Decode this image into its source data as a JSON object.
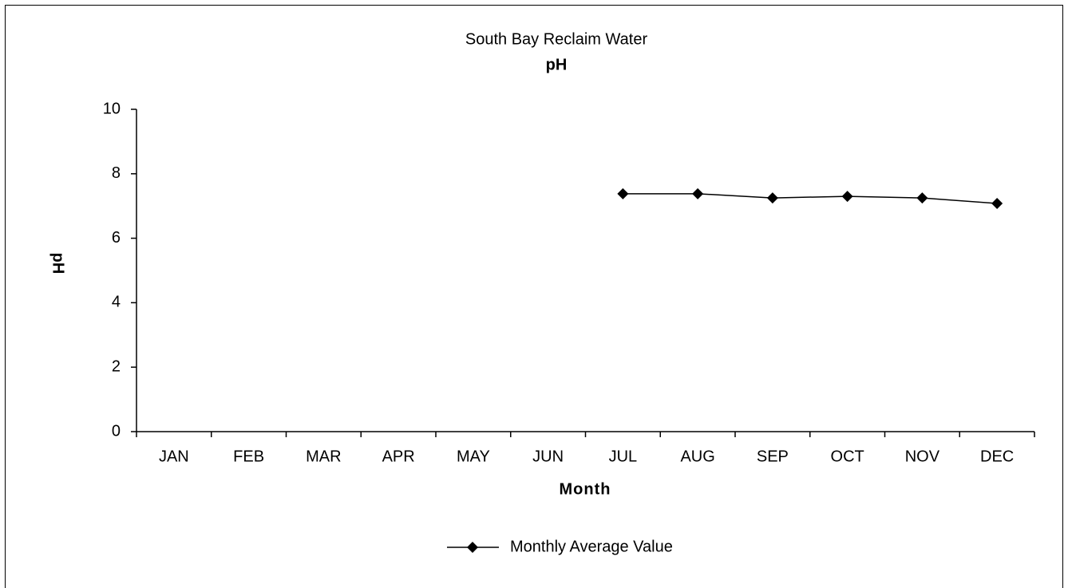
{
  "chart_data": {
    "type": "line",
    "title": "South Bay Reclaim Water",
    "subtitle": "pH",
    "x_label": "Month",
    "y_label": "pH",
    "categories": [
      "JAN",
      "FEB",
      "MAR",
      "APR",
      "MAY",
      "JUN",
      "JUL",
      "AUG",
      "SEP",
      "OCT",
      "NOV",
      "DEC"
    ],
    "series": [
      {
        "name": "Monthly Average Value",
        "color": "#000000",
        "values": [
          null,
          null,
          null,
          null,
          null,
          null,
          7.38,
          7.38,
          7.25,
          7.3,
          7.25,
          7.08
        ]
      }
    ],
    "ylim": [
      0,
      10
    ],
    "yticks": [
      0,
      2,
      4,
      6,
      8,
      10
    ],
    "grid": false,
    "legend": "bottom"
  }
}
